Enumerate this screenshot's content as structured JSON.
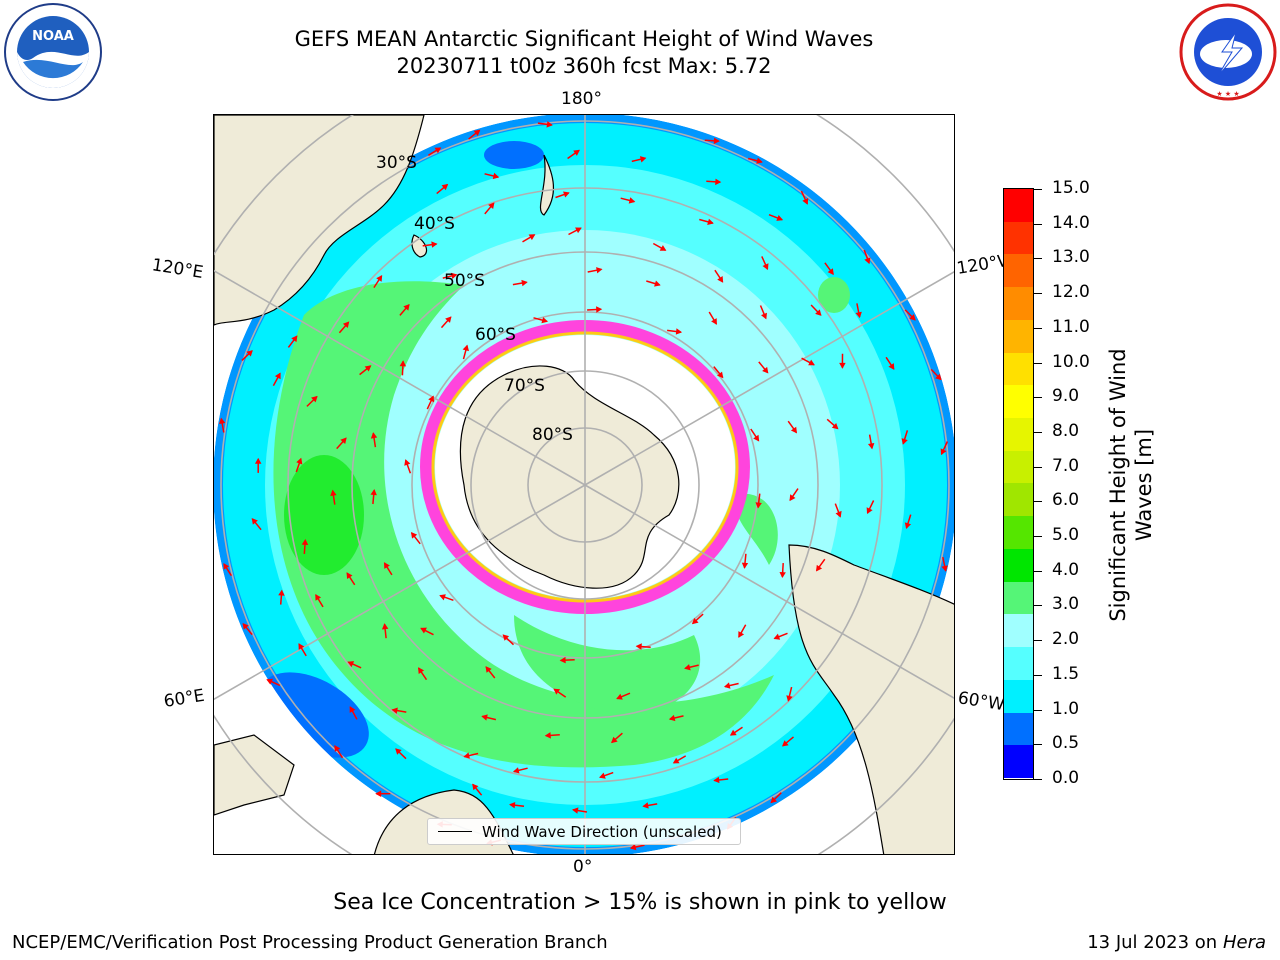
{
  "header": {
    "title_line1": "GEFS MEAN Antarctic Significant Height of Wind Waves",
    "title_line2": "20230711 t00z 360h fcst   Max: 5.72"
  },
  "logos": {
    "left": "NOAA",
    "left_ring_text": "NATIONAL OCEANIC AND ATMOSPHERIC ADMINISTRATION · U.S. DEPARTMENT OF COMMERCE",
    "right_ring_text": "NATIONAL WEATHER SERVICE"
  },
  "map": {
    "projection": "south-polar-stereographic",
    "longitude_labels": {
      "top": "180°",
      "bottom": "0°",
      "upper_left": "120°E",
      "lower_left": "60°E",
      "upper_right": "120°W",
      "lower_right": "60°W"
    },
    "latitude_labels": [
      "30°S",
      "40°S",
      "50°S",
      "60°S",
      "70°S",
      "80°S"
    ],
    "legend_label": "Wind Wave Direction (unscaled)",
    "colors": {
      "land": "#efebd8",
      "ice_free_ocean_low": "#00ffff",
      "wave_band": "#55f06a",
      "sea_ice_pink": "#ff44dd",
      "sea_ice_yellow": "#ffd700",
      "arrow": "#ff0000",
      "grid": "#b0b0b0"
    }
  },
  "colorbar": {
    "title": "Significant Height of Wind Waves [m]",
    "ticks": [
      "15.0",
      "14.0",
      "13.0",
      "12.0",
      "11.0",
      "10.0",
      "9.0",
      "8.0",
      "7.0",
      "6.0",
      "5.0",
      "4.0",
      "3.0",
      "2.0",
      "1.5",
      "1.0",
      "0.5",
      "0.0"
    ],
    "colors_bottom_to_top": [
      "#0000ff",
      "#0070ff",
      "#00f0ff",
      "#55ffff",
      "#a0ffff",
      "#55f577",
      "#00e600",
      "#55e600",
      "#a0e600",
      "#c8f000",
      "#e6f500",
      "#ffff00",
      "#ffe000",
      "#ffb400",
      "#ff8c00",
      "#ff6400",
      "#ff3200",
      "#ff0000"
    ]
  },
  "footer": {
    "note": "Sea Ice Concentration > 15% is shown in pink to yellow",
    "left": "NCEP/EMC/Verification Post Processing Product Generation Branch",
    "right_date": "13 Jul 2023 on ",
    "right_host": "Hera"
  }
}
